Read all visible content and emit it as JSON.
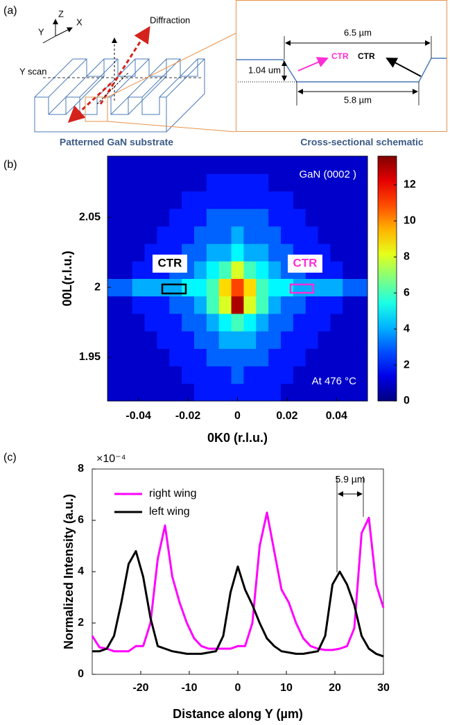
{
  "panel_labels": [
    "(a)",
    "(b)",
    "(c)"
  ],
  "diagram": {
    "axes": [
      "Z",
      "Y",
      "X"
    ],
    "beam": "Diffraction",
    "scan": "Y scan",
    "caption_left": "Patterned GaN substrate",
    "caption_right": "Cross-sectional schematic",
    "dimensions": [
      "6.5 µm",
      "1.04 um",
      "5.8 µm"
    ],
    "ctr_labels": [
      "CTR",
      "CTR"
    ]
  },
  "chart_data": [
    {
      "type": "heatmap",
      "xlabel": "0K0 (r.l.u.)",
      "ylabel": "00L(r.l.u.)",
      "annotations": [
        "GaN (0002 )",
        "At 476 °C",
        "CTR",
        "CTR"
      ],
      "colormap": "jet",
      "clim": [
        0,
        13.6
      ],
      "cticks": [
        0,
        2,
        4,
        6,
        8,
        10,
        12
      ],
      "xlim": [
        -0.0525,
        0.0525
      ],
      "xticks": [
        -0.04,
        -0.02,
        0,
        0.02,
        0.04
      ],
      "ylim": [
        1.91875,
        2.09375
      ],
      "yticks": [
        1.95,
        2,
        2.05
      ],
      "x": [
        -0.05,
        -0.045,
        -0.04,
        -0.035,
        -0.03,
        -0.025,
        -0.02,
        -0.015,
        -0.01,
        -0.005,
        0,
        0.005,
        0.01,
        0.015,
        0.02,
        0.025,
        0.03,
        0.035,
        0.04,
        0.045,
        0.05
      ],
      "y": [
        1.925,
        1.9375,
        1.95,
        1.9625,
        1.975,
        1.9875,
        2.0,
        2.0125,
        2.025,
        2.0375,
        2.05,
        2.0625,
        2.075,
        2.0875
      ],
      "z": [
        [
          1,
          1,
          1,
          1,
          1,
          1,
          1,
          2,
          2,
          2,
          2,
          2,
          2,
          2,
          1,
          1,
          1,
          1,
          1,
          1,
          1
        ],
        [
          1,
          1,
          1,
          1,
          1,
          1,
          2,
          2,
          2,
          2,
          3,
          2,
          2,
          2,
          2,
          1,
          1,
          1,
          1,
          1,
          1
        ],
        [
          1,
          1,
          1,
          1,
          1,
          2,
          2,
          2,
          3,
          3,
          3,
          3,
          3,
          2,
          2,
          2,
          1,
          1,
          1,
          1,
          1
        ],
        [
          1,
          1,
          1,
          1,
          2,
          2,
          2,
          3,
          3,
          4,
          4,
          4,
          3,
          3,
          2,
          2,
          2,
          1,
          1,
          1,
          1
        ],
        [
          1,
          1,
          1,
          2,
          2,
          2,
          3,
          3,
          4,
          5,
          6,
          5,
          4,
          3,
          3,
          2,
          2,
          2,
          1,
          1,
          1
        ],
        [
          1,
          1,
          2,
          2,
          2,
          3,
          3,
          4,
          6,
          8,
          13,
          8,
          6,
          4,
          3,
          3,
          2,
          2,
          2,
          1,
          1
        ],
        [
          3,
          3,
          4,
          4,
          4,
          4,
          5,
          5,
          6,
          9,
          11,
          9,
          6,
          5,
          5,
          4,
          4,
          4,
          4,
          3,
          3
        ],
        [
          1,
          1,
          2,
          2,
          2,
          3,
          3,
          4,
          5,
          6,
          8,
          6,
          5,
          4,
          3,
          3,
          2,
          2,
          2,
          1,
          1
        ],
        [
          1,
          1,
          1,
          2,
          2,
          2,
          3,
          3,
          4,
          4,
          5,
          4,
          4,
          3,
          3,
          2,
          2,
          2,
          1,
          1,
          1
        ],
        [
          1,
          1,
          1,
          1,
          2,
          2,
          2,
          3,
          3,
          3,
          4,
          3,
          3,
          3,
          2,
          2,
          2,
          1,
          1,
          1,
          1
        ],
        [
          1,
          1,
          1,
          1,
          1,
          2,
          2,
          2,
          3,
          3,
          3,
          3,
          3,
          2,
          2,
          2,
          1,
          1,
          1,
          1,
          1
        ],
        [
          1,
          1,
          1,
          1,
          1,
          1,
          2,
          2,
          2,
          2,
          2,
          2,
          2,
          2,
          2,
          1,
          1,
          1,
          1,
          1,
          1
        ],
        [
          1,
          1,
          1,
          1,
          1,
          1,
          1,
          1,
          2,
          2,
          2,
          2,
          2,
          1,
          1,
          1,
          1,
          1,
          1,
          1,
          1
        ],
        [
          1,
          1,
          1,
          1,
          1,
          1,
          1,
          1,
          1,
          1,
          1,
          1,
          1,
          1,
          1,
          1,
          1,
          1,
          1,
          1,
          1
        ]
      ]
    },
    {
      "type": "line",
      "xlabel": "Distance along Y (µm)",
      "ylabel": "Normalized Intensity (a.u.)",
      "y_multiplier": "×10⁻⁴",
      "annotation": "5.9 µm",
      "legend": "upper left",
      "xlim": [
        -30,
        30
      ],
      "xticks": [
        -20,
        -10,
        0,
        10,
        20,
        30
      ],
      "ylim": [
        0,
        8
      ],
      "yticks": [
        0,
        2,
        4,
        6,
        8
      ],
      "x": [
        -30,
        -28.5,
        -27,
        -25.5,
        -24,
        -22.5,
        -21,
        -19.5,
        -18,
        -16.5,
        -15,
        -13.5,
        -12,
        -10.5,
        -9,
        -7.5,
        -6,
        -4.5,
        -3,
        -1.5,
        0,
        1.5,
        3,
        4.5,
        6,
        7.5,
        9,
        10.5,
        12,
        13.5,
        15,
        16.5,
        18,
        19.5,
        21,
        22.5,
        24,
        25.5,
        27,
        28.5,
        30
      ],
      "series": [
        {
          "name": "right wing",
          "color": "#ff00ff",
          "values": [
            1.5,
            1.05,
            1.0,
            0.9,
            0.9,
            0.9,
            1.1,
            1.1,
            2.0,
            4.5,
            5.8,
            3.8,
            2.8,
            2.0,
            1.4,
            1.1,
            1.0,
            1.0,
            1.0,
            1.0,
            1.1,
            1.1,
            2.0,
            5.0,
            6.3,
            4.8,
            3.3,
            2.8,
            2.0,
            1.4,
            1.1,
            1.0,
            0.95,
            0.95,
            1.0,
            1.1,
            1.8,
            5.5,
            6.1,
            3.5,
            2.6
          ]
        },
        {
          "name": "left wing",
          "color": "#000000",
          "values": [
            0.9,
            0.9,
            1.0,
            1.5,
            2.8,
            4.3,
            4.8,
            3.8,
            2.2,
            1.1,
            1.0,
            0.9,
            0.85,
            0.8,
            0.8,
            0.8,
            0.85,
            0.9,
            1.5,
            3.2,
            4.2,
            3.3,
            2.7,
            2.0,
            1.4,
            1.1,
            0.9,
            0.85,
            0.8,
            0.8,
            0.85,
            0.9,
            1.5,
            3.5,
            4.0,
            3.5,
            2.7,
            1.5,
            1.0,
            0.8,
            0.7
          ]
        }
      ]
    }
  ]
}
